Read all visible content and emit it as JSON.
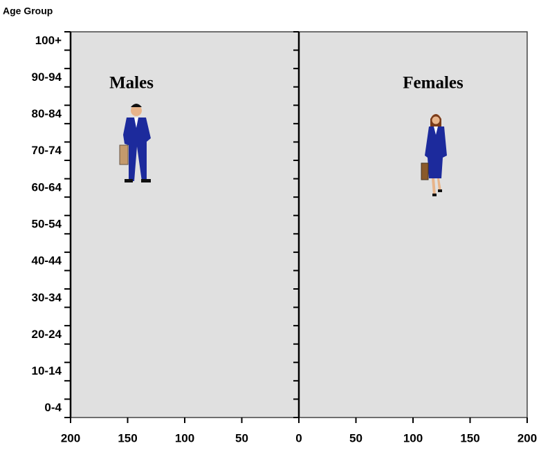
{
  "chart_data": {
    "type": "pyramid",
    "y_label": "Age Group",
    "categories": [
      "0-4",
      null,
      "10-14",
      null,
      "20-24",
      null,
      "30-34",
      null,
      "40-44",
      null,
      "50-54",
      null,
      "60-64",
      null,
      "70-74",
      null,
      "80-84",
      null,
      "90-94",
      null,
      "100+"
    ],
    "annotations": [
      "Males",
      "Females"
    ],
    "xlim": [
      -200,
      200
    ],
    "xticks": [
      {
        "value": -200,
        "label": "200"
      },
      {
        "value": -150,
        "label": "150"
      },
      {
        "value": -100,
        "label": "100"
      },
      {
        "value": -50,
        "label": "50"
      },
      0,
      50,
      100,
      150,
      200
    ],
    "background": "#e0e0e0"
  }
}
